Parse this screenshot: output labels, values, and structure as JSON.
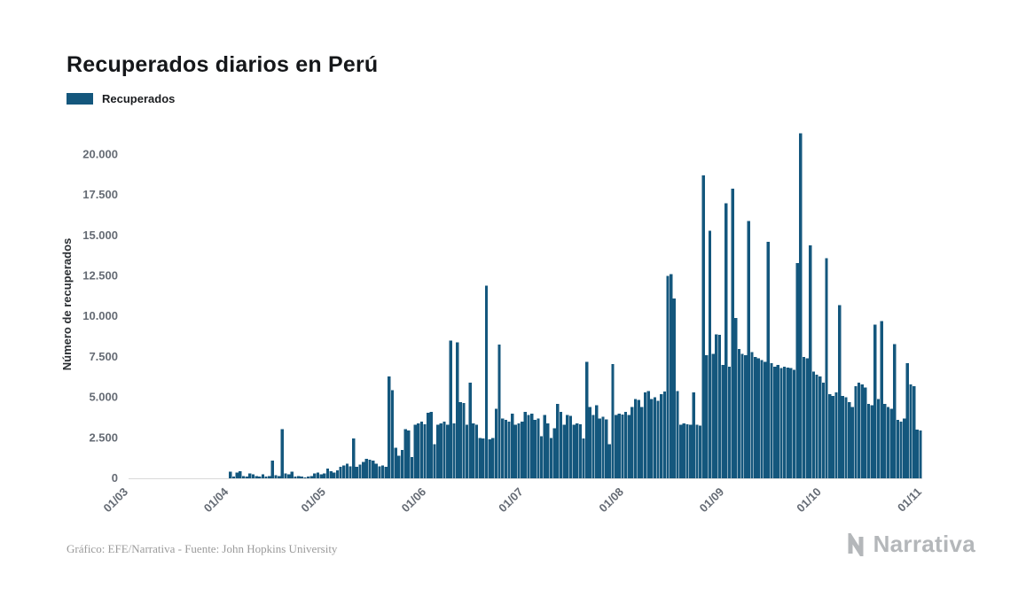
{
  "page": {
    "title": "Recuperados diarios en Perú",
    "footer": "Gráfico: EFE/Narrativa - Fuente: John Hopkins University",
    "brand": "Narrativa"
  },
  "legend": {
    "label": "Recuperados",
    "color": "#14577d"
  },
  "chart_data": {
    "type": "bar",
    "title": "Recuperados diarios en Perú",
    "series_name": "Recuperados",
    "xlabel": "",
    "ylabel": "Número de recuperados",
    "bar_color": "#14577d",
    "ylim": [
      0,
      21500
    ],
    "yticks": [
      0,
      2500,
      5000,
      7500,
      10000,
      12500,
      15000,
      17500,
      20000
    ],
    "ytick_labels": [
      "0",
      "2.500",
      "5.000",
      "7.500",
      "10.000",
      "12.500",
      "15.000",
      "17.500",
      "20.000"
    ],
    "xtick_labels": [
      "01/03",
      "01/04",
      "01/05",
      "01/06",
      "01/07",
      "01/08",
      "01/09",
      "01/10",
      "01/11"
    ],
    "xtick_positions": [
      0,
      31,
      61,
      92,
      122,
      153,
      184,
      214,
      245
    ],
    "grid": false,
    "legend_position": "top-left",
    "values": [
      0,
      0,
      0,
      0,
      0,
      0,
      0,
      0,
      0,
      0,
      0,
      0,
      0,
      0,
      0,
      0,
      0,
      0,
      0,
      0,
      0,
      0,
      0,
      0,
      0,
      0,
      0,
      0,
      0,
      0,
      0,
      400,
      100,
      350,
      450,
      150,
      100,
      300,
      250,
      150,
      100,
      250,
      100,
      150,
      1100,
      200,
      150,
      3050,
      300,
      250,
      400,
      100,
      150,
      100,
      50,
      100,
      150,
      300,
      350,
      250,
      300,
      600,
      450,
      350,
      500,
      700,
      800,
      900,
      750,
      2450,
      700,
      850,
      1000,
      1200,
      1150,
      1100,
      900,
      750,
      800,
      700,
      6300,
      5450,
      1900,
      1400,
      1750,
      3050,
      2950,
      1300,
      3300,
      3400,
      3500,
      3350,
      4050,
      4100,
      2100,
      3300,
      3400,
      3500,
      3300,
      8500,
      3400,
      8400,
      4700,
      4650,
      3300,
      5900,
      3400,
      3300,
      2500,
      2450,
      11900,
      2400,
      2500,
      4300,
      8250,
      3700,
      3600,
      3500,
      4000,
      3300,
      3400,
      3500,
      4100,
      3900,
      4000,
      3600,
      3700,
      2600,
      3900,
      3400,
      2500,
      3100,
      4600,
      4100,
      3300,
      3900,
      3850,
      3300,
      3400,
      3350,
      2450,
      7200,
      4400,
      3900,
      4500,
      3700,
      3800,
      3650,
      2100,
      7050,
      3900,
      4000,
      3950,
      4100,
      3900,
      4400,
      4900,
      4850,
      4400,
      5300,
      5400,
      4900,
      5000,
      4800,
      5200,
      5350,
      12500,
      12600,
      11100,
      5400,
      3300,
      3400,
      3350,
      3300,
      5300,
      3300,
      3250,
      18700,
      7600,
      15300,
      7700,
      8900,
      8850,
      7000,
      17000,
      6900,
      17900,
      9900,
      8000,
      7700,
      7600,
      15900,
      7800,
      7500,
      7400,
      7300,
      7200,
      14600,
      7100,
      6900,
      7000,
      6800,
      6900,
      6850,
      6800,
      6700,
      13300,
      21300,
      7500,
      7400,
      14400,
      6600,
      6400,
      6300,
      5900,
      13600,
      5200,
      5100,
      5300,
      10700,
      5100,
      5000,
      4700,
      4400,
      5700,
      5900,
      5800,
      5600,
      4600,
      4500,
      9500,
      4900,
      9700,
      4600,
      4400,
      4300,
      8300,
      3600,
      3500,
      3700,
      7100,
      5800,
      5700,
      3000,
      2950
    ]
  }
}
